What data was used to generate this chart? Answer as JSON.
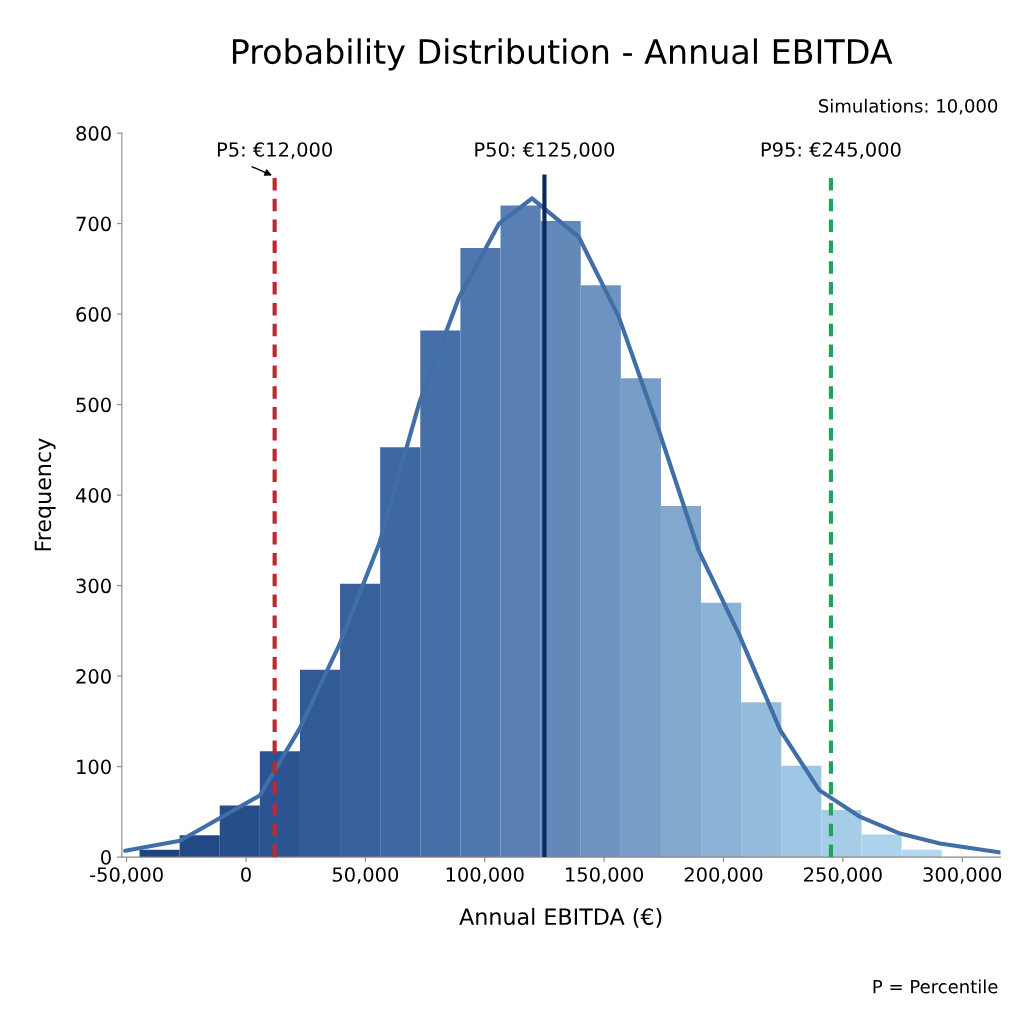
{
  "chart_data": {
    "type": "histogram",
    "title": "Probability Distribution - Annual EBITDA",
    "xlabel": "Annual EBITDA (€)",
    "ylabel": "Frequency",
    "bins": [
      -44600,
      -27800,
      -11000,
      5800,
      22600,
      39400,
      56200,
      73000,
      89800,
      106600,
      123400,
      140200,
      157000,
      173800,
      190600,
      207400,
      224200,
      241000,
      257800,
      274600,
      291400
    ],
    "values": [
      8,
      24,
      57,
      117,
      207,
      302,
      453,
      582,
      673,
      720,
      703,
      632,
      529,
      388,
      281,
      171,
      101,
      52,
      25,
      8
    ],
    "colors": [
      "#1e4482",
      "#224986",
      "#274e8b",
      "#2c5490",
      "#325a95",
      "#38609b",
      "#3f67a1",
      "#476fa7",
      "#5077ad",
      "#5a80b3",
      "#6489b9",
      "#6e93c0",
      "#789dc7",
      "#82a8ce",
      "#8cb2d6",
      "#95bcdd",
      "#9ec5e3",
      "#a6cde8",
      "#add3ec",
      "#b4d8ef"
    ],
    "series": [
      {
        "type": "line",
        "color": "#3f6fa6",
        "x": [
          -50600,
          -27650,
          5760,
          22470,
          39180,
          55890,
          72600,
          89310,
          106020,
          119800,
          139430,
          156140,
          172850,
          189560,
          206690,
          223810,
          240100,
          256810,
          273940,
          290650,
          316000
        ],
        "values": [
          7,
          18,
          68,
          142,
          235,
          347,
          502,
          619,
          700,
          728,
          685,
          597,
          472,
          339,
          245,
          140,
          74,
          45,
          26,
          15,
          5
        ]
      }
    ],
    "xlim": [
      -52000,
      316000
    ],
    "ylim": [
      0,
      800
    ],
    "xticks": [
      {
        "value": -50000,
        "label": "-50,000"
      },
      0,
      {
        "value": 50000,
        "label": "50,000"
      },
      {
        "value": 100000,
        "label": "100,000"
      },
      {
        "value": 150000,
        "label": "150,000"
      },
      {
        "value": 200000,
        "label": "200,000"
      },
      {
        "value": 250000,
        "label": "250,000"
      },
      {
        "value": 300000,
        "label": "300,000"
      }
    ],
    "yticks": [
      0,
      100,
      200,
      300,
      400,
      500,
      600,
      700,
      800
    ],
    "ref_lines": [
      {
        "axis": "x",
        "value": 12000,
        "label": "P5: €12,000",
        "color": "#c0282d",
        "line_style": "dashed"
      },
      {
        "axis": "x",
        "value": 125000,
        "label": "P50: €125,000",
        "color": "#0d2a5e",
        "line_style": "solid"
      },
      {
        "axis": "x",
        "value": 245000,
        "label": "P95: €245,000",
        "color": "#1fa45a",
        "line_style": "dashed"
      }
    ],
    "annotations": [
      "Simulations: 10,000",
      "P = Percentile"
    ],
    "grid": false,
    "legend": false
  }
}
